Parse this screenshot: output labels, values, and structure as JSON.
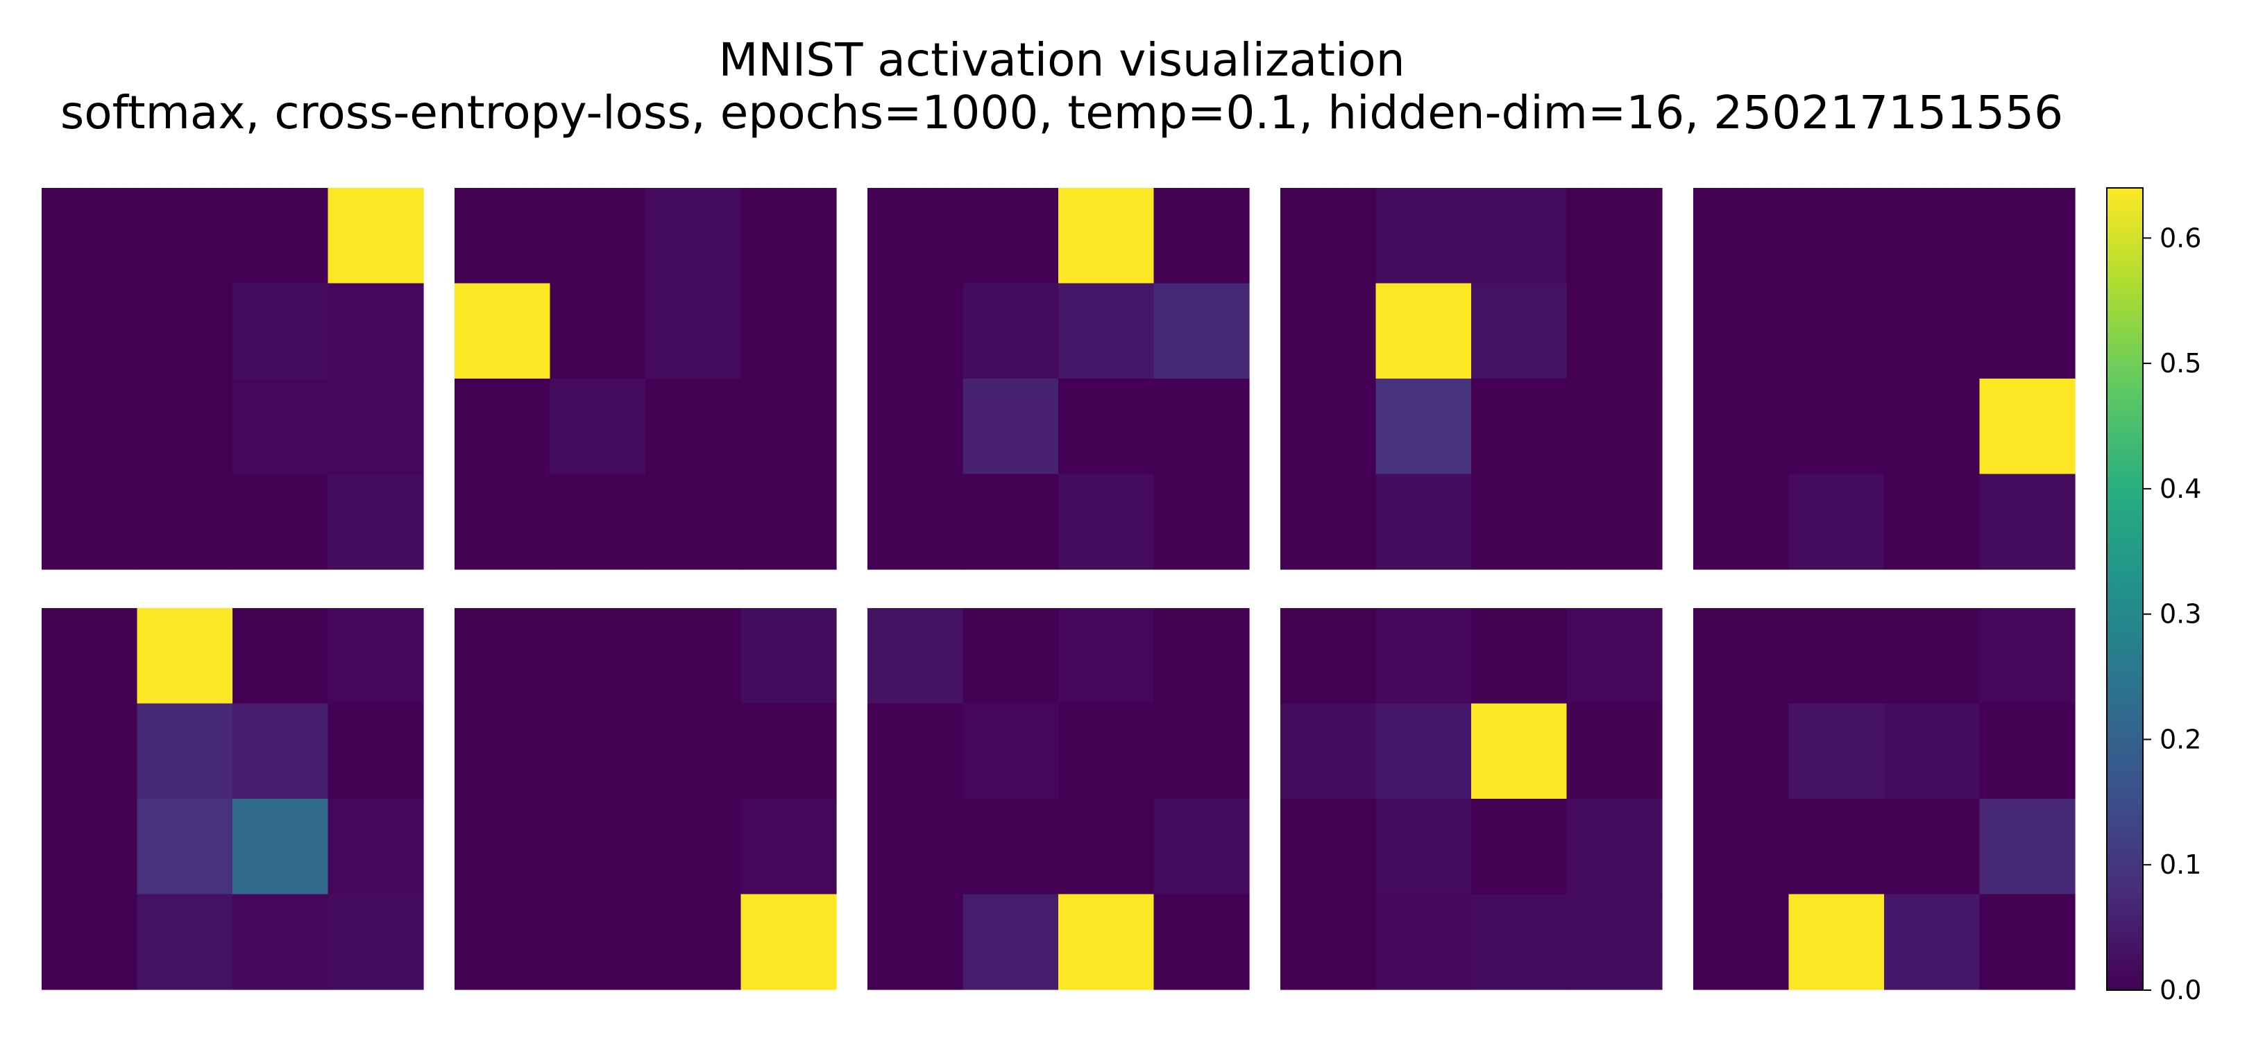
{
  "chart_data": {
    "type": "heatmap",
    "title": "MNIST activation visualization",
    "subtitle": "softmax, cross-entropy-loss, epochs=1000, temp=0.1, hidden-dim=16, 250217151556",
    "grid": false,
    "layout": "2 rows x 5 panels",
    "colormap": "viridis",
    "colorbar": {
      "position": "right",
      "vmin": 0.0,
      "vmax": 0.64,
      "ticks": [
        0.0,
        0.1,
        0.2,
        0.3,
        0.4,
        0.5,
        0.6
      ],
      "tick_labels": [
        "0.0",
        "0.1",
        "0.2",
        "0.3",
        "0.4",
        "0.5",
        "0.6"
      ]
    },
    "panels": [
      {
        "values": [
          [
            0.0,
            0.0,
            0.0,
            0.64
          ],
          [
            0.0,
            0.0,
            0.02,
            0.01
          ],
          [
            0.0,
            0.0,
            0.01,
            0.01
          ],
          [
            0.0,
            0.0,
            0.0,
            0.02
          ]
        ]
      },
      {
        "values": [
          [
            0.0,
            0.0,
            0.02,
            0.0
          ],
          [
            0.64,
            0.0,
            0.02,
            0.0
          ],
          [
            0.0,
            0.02,
            0.0,
            0.0
          ],
          [
            0.0,
            0.0,
            0.0,
            0.0
          ]
        ]
      },
      {
        "values": [
          [
            0.0,
            0.0,
            0.64,
            0.0
          ],
          [
            0.0,
            0.02,
            0.04,
            0.07
          ],
          [
            0.0,
            0.06,
            0.0,
            0.0
          ],
          [
            0.0,
            0.0,
            0.02,
            0.0
          ]
        ]
      },
      {
        "values": [
          [
            0.0,
            0.02,
            0.02,
            0.0
          ],
          [
            0.0,
            0.64,
            0.03,
            0.0
          ],
          [
            0.0,
            0.09,
            0.0,
            0.0
          ],
          [
            0.0,
            0.02,
            0.0,
            0.0
          ]
        ]
      },
      {
        "values": [
          [
            0.0,
            0.0,
            0.0,
            0.0
          ],
          [
            0.0,
            0.0,
            0.0,
            0.0
          ],
          [
            0.0,
            0.0,
            0.0,
            0.64
          ],
          [
            0.0,
            0.02,
            0.0,
            0.02
          ]
        ]
      },
      {
        "values": [
          [
            0.0,
            0.64,
            0.0,
            0.01
          ],
          [
            0.0,
            0.07,
            0.05,
            0.0
          ],
          [
            0.0,
            0.09,
            0.22,
            0.01
          ],
          [
            0.0,
            0.03,
            0.01,
            0.02
          ]
        ]
      },
      {
        "values": [
          [
            0.0,
            0.0,
            0.0,
            0.02
          ],
          [
            0.0,
            0.0,
            0.0,
            0.0
          ],
          [
            0.0,
            0.0,
            0.0,
            0.01
          ],
          [
            0.0,
            0.0,
            0.0,
            0.64
          ]
        ]
      },
      {
        "values": [
          [
            0.03,
            0.0,
            0.01,
            0.0
          ],
          [
            0.0,
            0.01,
            0.0,
            0.0
          ],
          [
            0.0,
            0.0,
            0.0,
            0.02
          ],
          [
            0.0,
            0.05,
            0.64,
            0.0
          ]
        ]
      },
      {
        "values": [
          [
            0.0,
            0.01,
            0.0,
            0.01
          ],
          [
            0.02,
            0.04,
            0.64,
            0.0
          ],
          [
            0.0,
            0.02,
            0.0,
            0.02
          ],
          [
            0.0,
            0.01,
            0.02,
            0.02
          ]
        ]
      },
      {
        "values": [
          [
            0.0,
            0.0,
            0.0,
            0.01
          ],
          [
            0.0,
            0.03,
            0.02,
            0.0
          ],
          [
            0.0,
            0.0,
            0.0,
            0.07
          ],
          [
            0.0,
            0.64,
            0.04,
            0.0
          ]
        ]
      }
    ]
  }
}
